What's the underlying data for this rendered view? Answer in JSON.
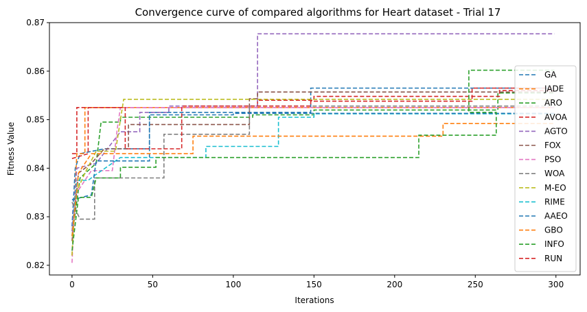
{
  "chart_data": {
    "type": "line",
    "title": "Convergence curve of compared algorithms for Heart dataset - Trial 17",
    "xlabel": "Iterations",
    "ylabel": "Fitness Value",
    "xlim": [
      -14,
      315
    ],
    "ylim": [
      0.818,
      0.87
    ],
    "xticks": [
      0,
      50,
      100,
      150,
      200,
      250,
      300
    ],
    "yticks": [
      0.82,
      0.83,
      0.84,
      0.85,
      0.86,
      0.87
    ],
    "grid": false,
    "legend_position": "right",
    "line_style": "dashed",
    "series": [
      {
        "name": "GA",
        "color": "#1f77b4",
        "points": [
          [
            0,
            0.828
          ],
          [
            2,
            0.84
          ],
          [
            5,
            0.843
          ],
          [
            20,
            0.844
          ],
          [
            48,
            0.844
          ],
          [
            48,
            0.8515
          ],
          [
            148,
            0.8515
          ],
          [
            148,
            0.8565
          ],
          [
            299,
            0.8565
          ]
        ]
      },
      {
        "name": "JADE",
        "color": "#ff7f0e",
        "points": [
          [
            0,
            0.822
          ],
          [
            3,
            0.843
          ],
          [
            8,
            0.843
          ],
          [
            8,
            0.8525
          ],
          [
            299,
            0.8525
          ]
        ]
      },
      {
        "name": "ARO",
        "color": "#2ca02c",
        "points": [
          [
            0,
            0.826
          ],
          [
            5,
            0.838
          ],
          [
            15,
            0.841
          ],
          [
            18,
            0.8495
          ],
          [
            30,
            0.8495
          ],
          [
            30,
            0.8505
          ],
          [
            112,
            0.8505
          ],
          [
            112,
            0.851
          ],
          [
            150,
            0.851
          ],
          [
            150,
            0.852
          ],
          [
            264,
            0.852
          ],
          [
            264,
            0.8555
          ],
          [
            299,
            0.8555
          ]
        ]
      },
      {
        "name": "AVOA",
        "color": "#d62728",
        "points": [
          [
            0,
            0.842
          ],
          [
            10,
            0.843
          ],
          [
            10,
            0.8525
          ],
          [
            115,
            0.8525
          ],
          [
            115,
            0.854
          ],
          [
            150,
            0.854
          ],
          [
            150,
            0.8548
          ],
          [
            265,
            0.8548
          ],
          [
            265,
            0.856
          ],
          [
            299,
            0.856
          ]
        ]
      },
      {
        "name": "AGTO",
        "color": "#9467bd",
        "points": [
          [
            0,
            0.827
          ],
          [
            3,
            0.84
          ],
          [
            15,
            0.841
          ],
          [
            30,
            0.8475
          ],
          [
            42,
            0.8475
          ],
          [
            42,
            0.8515
          ],
          [
            60,
            0.8515
          ],
          [
            60,
            0.8528
          ],
          [
            115,
            0.8528
          ],
          [
            115,
            0.8677
          ],
          [
            299,
            0.8677
          ]
        ]
      },
      {
        "name": "FOX",
        "color": "#8c564b",
        "points": [
          [
            0,
            0.825
          ],
          [
            4,
            0.839
          ],
          [
            12,
            0.841
          ],
          [
            20,
            0.844
          ],
          [
            35,
            0.844
          ],
          [
            35,
            0.849
          ],
          [
            110,
            0.849
          ],
          [
            110,
            0.8543
          ],
          [
            115,
            0.8543
          ],
          [
            115,
            0.8557
          ],
          [
            299,
            0.8557
          ]
        ]
      },
      {
        "name": "PSO",
        "color": "#e377c2",
        "points": [
          [
            0,
            0.8205
          ],
          [
            2,
            0.8345
          ],
          [
            12,
            0.8395
          ],
          [
            25,
            0.8395
          ],
          [
            28,
            0.848
          ],
          [
            30,
            0.8525
          ],
          [
            299,
            0.8525
          ]
        ]
      },
      {
        "name": "WOA",
        "color": "#7f7f7f",
        "points": [
          [
            0,
            0.833
          ],
          [
            5,
            0.8295
          ],
          [
            14,
            0.8295
          ],
          [
            14,
            0.838
          ],
          [
            57,
            0.838
          ],
          [
            57,
            0.847
          ],
          [
            110,
            0.847
          ],
          [
            110,
            0.8528
          ],
          [
            299,
            0.8528
          ]
        ]
      },
      {
        "name": "M-EO",
        "color": "#bcbd22",
        "points": [
          [
            0,
            0.822
          ],
          [
            2,
            0.8345
          ],
          [
            8,
            0.839
          ],
          [
            15,
            0.8435
          ],
          [
            27,
            0.8435
          ],
          [
            32,
            0.8542
          ],
          [
            299,
            0.8542
          ]
        ]
      },
      {
        "name": "RIME",
        "color": "#17becf",
        "points": [
          [
            0,
            0.826
          ],
          [
            3,
            0.8375
          ],
          [
            10,
            0.8375
          ],
          [
            14,
            0.8385
          ],
          [
            30,
            0.8422
          ],
          [
            83,
            0.8422
          ],
          [
            83,
            0.8445
          ],
          [
            128,
            0.8445
          ],
          [
            128,
            0.8505
          ],
          [
            150,
            0.8505
          ],
          [
            150,
            0.8512
          ],
          [
            299,
            0.8512
          ]
        ]
      },
      {
        "name": "AAEO",
        "color": "#1f77b4",
        "points": [
          [
            0,
            0.8335
          ],
          [
            6,
            0.834
          ],
          [
            12,
            0.8345
          ],
          [
            15,
            0.8415
          ],
          [
            48,
            0.8415
          ],
          [
            48,
            0.851
          ],
          [
            100,
            0.851
          ],
          [
            100,
            0.8513
          ],
          [
            299,
            0.8513
          ]
        ]
      },
      {
        "name": "GBO",
        "color": "#ff7f0e",
        "points": [
          [
            0,
            0.826
          ],
          [
            4,
            0.839
          ],
          [
            12,
            0.843
          ],
          [
            75,
            0.843
          ],
          [
            75,
            0.8466
          ],
          [
            230,
            0.8466
          ],
          [
            230,
            0.8492
          ],
          [
            299,
            0.8492
          ]
        ]
      },
      {
        "name": "INFO",
        "color": "#2ca02c",
        "points": [
          [
            0,
            0.823
          ],
          [
            4,
            0.834
          ],
          [
            12,
            0.834
          ],
          [
            15,
            0.838
          ],
          [
            30,
            0.838
          ],
          [
            30,
            0.8402
          ],
          [
            52,
            0.8402
          ],
          [
            52,
            0.8422
          ],
          [
            215,
            0.8422
          ],
          [
            215,
            0.8468
          ],
          [
            263,
            0.8468
          ],
          [
            263,
            0.8515
          ],
          [
            246,
            0.8515
          ],
          [
            246,
            0.8602
          ],
          [
            299,
            0.8602
          ]
        ]
      },
      {
        "name": "RUN",
        "color": "#d62728",
        "points": [
          [
            0,
            0.843
          ],
          [
            3,
            0.843
          ],
          [
            3,
            0.8525
          ],
          [
            33,
            0.8525
          ],
          [
            33,
            0.844
          ],
          [
            68,
            0.844
          ],
          [
            68,
            0.8528
          ],
          [
            148,
            0.8528
          ],
          [
            148,
            0.8538
          ],
          [
            248,
            0.8538
          ],
          [
            248,
            0.8565
          ],
          [
            299,
            0.8565
          ]
        ]
      }
    ]
  }
}
